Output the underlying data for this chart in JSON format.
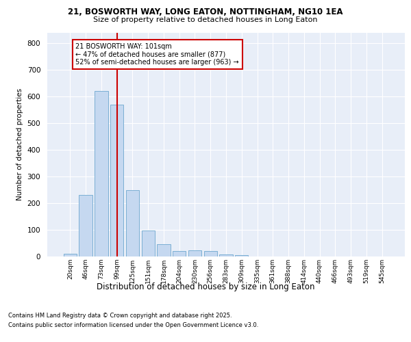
{
  "title_line1": "21, BOSWORTH WAY, LONG EATON, NOTTINGHAM, NG10 1EA",
  "title_line2": "Size of property relative to detached houses in Long Eaton",
  "xlabel": "Distribution of detached houses by size in Long Eaton",
  "ylabel": "Number of detached properties",
  "bar_labels": [
    "20sqm",
    "46sqm",
    "73sqm",
    "99sqm",
    "125sqm",
    "151sqm",
    "178sqm",
    "204sqm",
    "230sqm",
    "256sqm",
    "283sqm",
    "309sqm",
    "335sqm",
    "361sqm",
    "388sqm",
    "414sqm",
    "440sqm",
    "466sqm",
    "493sqm",
    "519sqm",
    "545sqm"
  ],
  "bar_values": [
    10,
    232,
    620,
    570,
    250,
    98,
    47,
    20,
    22,
    20,
    8,
    5,
    0,
    0,
    0,
    0,
    0,
    0,
    0,
    0,
    0
  ],
  "bar_color": "#C5D8F0",
  "bar_edge_color": "#7BAFD4",
  "background_color": "#E8EEF8",
  "grid_color": "#FFFFFF",
  "red_line_bin": 3,
  "annotation_text": "21 BOSWORTH WAY: 101sqm\n← 47% of detached houses are smaller (877)\n52% of semi-detached houses are larger (963) →",
  "annotation_box_color": "#FFFFFF",
  "annotation_box_edge": "#CC0000",
  "red_line_color": "#CC0000",
  "footnote1": "Contains HM Land Registry data © Crown copyright and database right 2025.",
  "footnote2": "Contains public sector information licensed under the Open Government Licence v3.0.",
  "ylim": [
    0,
    840
  ],
  "yticks": [
    0,
    100,
    200,
    300,
    400,
    500,
    600,
    700,
    800
  ]
}
